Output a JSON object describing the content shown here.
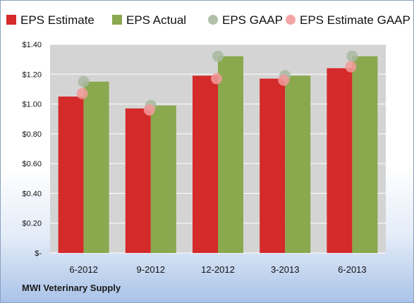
{
  "colors": {
    "eps_estimate": "#d42a2a",
    "eps_actual": "#8aa84e",
    "eps_gaap": "#a9b9a0",
    "eps_estimate_gaap": "#f29a9a",
    "plot_bg": "#d4d4d4"
  },
  "footer": {
    "company": "MWI Veterinary Supply"
  },
  "chart_data": {
    "type": "bar",
    "categories": [
      "6-2012",
      "9-2012",
      "12-2012",
      "3-2013",
      "6-2013"
    ],
    "series": [
      {
        "name": "EPS Estimate",
        "kind": "bar",
        "values": [
          1.05,
          0.97,
          1.19,
          1.17,
          1.24
        ]
      },
      {
        "name": "EPS Actual",
        "kind": "bar",
        "values": [
          1.15,
          0.99,
          1.32,
          1.19,
          1.32
        ]
      },
      {
        "name": "EPS GAAP",
        "kind": "marker",
        "values": [
          1.15,
          0.99,
          1.32,
          1.19,
          1.32
        ]
      },
      {
        "name": "EPS Estimate GAAP",
        "kind": "marker",
        "values": [
          1.07,
          0.96,
          1.17,
          1.16,
          1.25
        ]
      }
    ],
    "yticks": [
      "$-",
      "$0.20",
      "$0.40",
      "$0.60",
      "$0.80",
      "$1.00",
      "$1.20",
      "$1.40"
    ],
    "ylim": [
      0,
      1.4
    ],
    "grid": true,
    "legend_position": "top"
  }
}
